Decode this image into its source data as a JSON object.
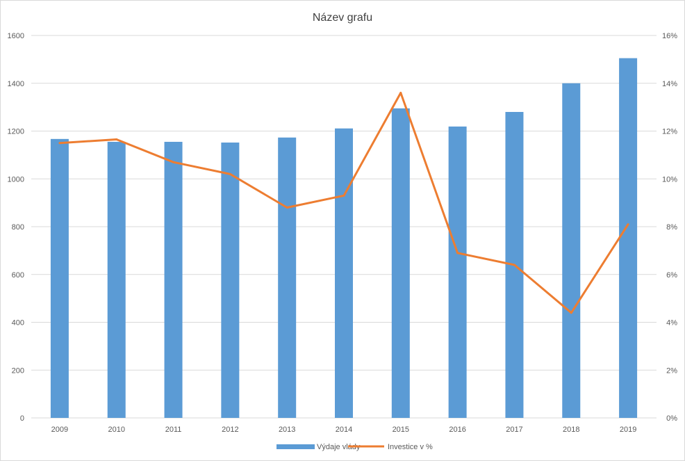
{
  "chart_data": {
    "type": "bar",
    "title": "Název grafu",
    "categories": [
      "2009",
      "2010",
      "2011",
      "2012",
      "2013",
      "2014",
      "2015",
      "2016",
      "2017",
      "2018",
      "2019"
    ],
    "series": [
      {
        "name": "Výdaje vlády",
        "type": "bar",
        "axis": "left",
        "color": "#5B9BD5",
        "values": [
          1167,
          1155,
          1155,
          1152,
          1173,
          1211,
          1295,
          1219,
          1280,
          1400,
          1505
        ]
      },
      {
        "name": "Investice v %",
        "type": "line",
        "axis": "right",
        "color": "#ED7D31",
        "values": [
          11.5,
          11.65,
          10.7,
          10.2,
          8.8,
          9.3,
          13.6,
          6.9,
          6.4,
          4.4,
          8.1
        ]
      }
    ],
    "y_left": {
      "min": 0,
      "max": 1600,
      "step": 200,
      "ticks": [
        "0",
        "200",
        "400",
        "600",
        "800",
        "1000",
        "1200",
        "1400",
        "1600"
      ]
    },
    "y_right": {
      "min": 0,
      "max": 16,
      "step": 2,
      "ticks": [
        "0%",
        "2%",
        "4%",
        "6%",
        "8%",
        "10%",
        "12%",
        "14%",
        "16%"
      ]
    },
    "grid": true,
    "legend": "bottom",
    "colors": {
      "gridline": "#d9d9d9",
      "text": "#595959",
      "title": "#404040"
    }
  }
}
